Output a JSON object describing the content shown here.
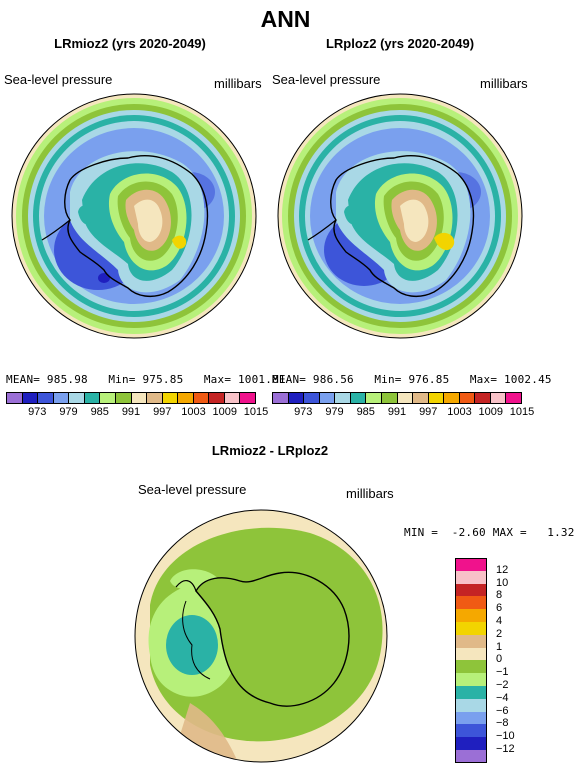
{
  "title": "ANN",
  "panel_left": {
    "title": "LRmioz2 (yrs 2020-2049)",
    "variable": "Sea-level pressure",
    "units": "millibars",
    "stats": "MEAN= 985.98   Min= 975.85   Max= 1001.81"
  },
  "panel_right": {
    "title": "LRploz2 (yrs 2020-2049)",
    "variable": "Sea-level pressure",
    "units": "millibars",
    "stats": "MEAN= 986.56   Min= 976.85   Max= 1002.45"
  },
  "panel_diff": {
    "title": "LRmioz2 - LRploz2",
    "variable": "Sea-level pressure",
    "units": "millibars",
    "minmax": "MIN =  -2.60 MAX =   1.32"
  },
  "colorbar_top": {
    "labels": [
      "973",
      "979",
      "985",
      "991",
      "997",
      "1003",
      "1009",
      "1015"
    ],
    "colors": [
      "#9b6fd6",
      "#1f1fbf",
      "#3d55d9",
      "#7aa0ee",
      "#a9d8e6",
      "#2ab2a6",
      "#b7f07a",
      "#8ec43a",
      "#f5e6be",
      "#e0b988",
      "#f2d400",
      "#f5a800",
      "#f05a14",
      "#c42424",
      "#f8c2c8",
      "#f0128c"
    ]
  },
  "colorbar_diff": {
    "labels": [
      "12",
      "10",
      "8",
      "6",
      "4",
      "2",
      "1",
      "0",
      "−1",
      "−2",
      "−4",
      "−6",
      "−8",
      "−10",
      "−12"
    ],
    "colors": [
      "#f0128c",
      "#f8c2c8",
      "#c42424",
      "#f05a14",
      "#f5a800",
      "#f2d400",
      "#e0b988",
      "#f5e6be",
      "#8ec43a",
      "#b7f07a",
      "#2ab2a6",
      "#a9d8e6",
      "#7aa0ee",
      "#3d55d9",
      "#1f1fbf",
      "#9b6fd6"
    ]
  }
}
